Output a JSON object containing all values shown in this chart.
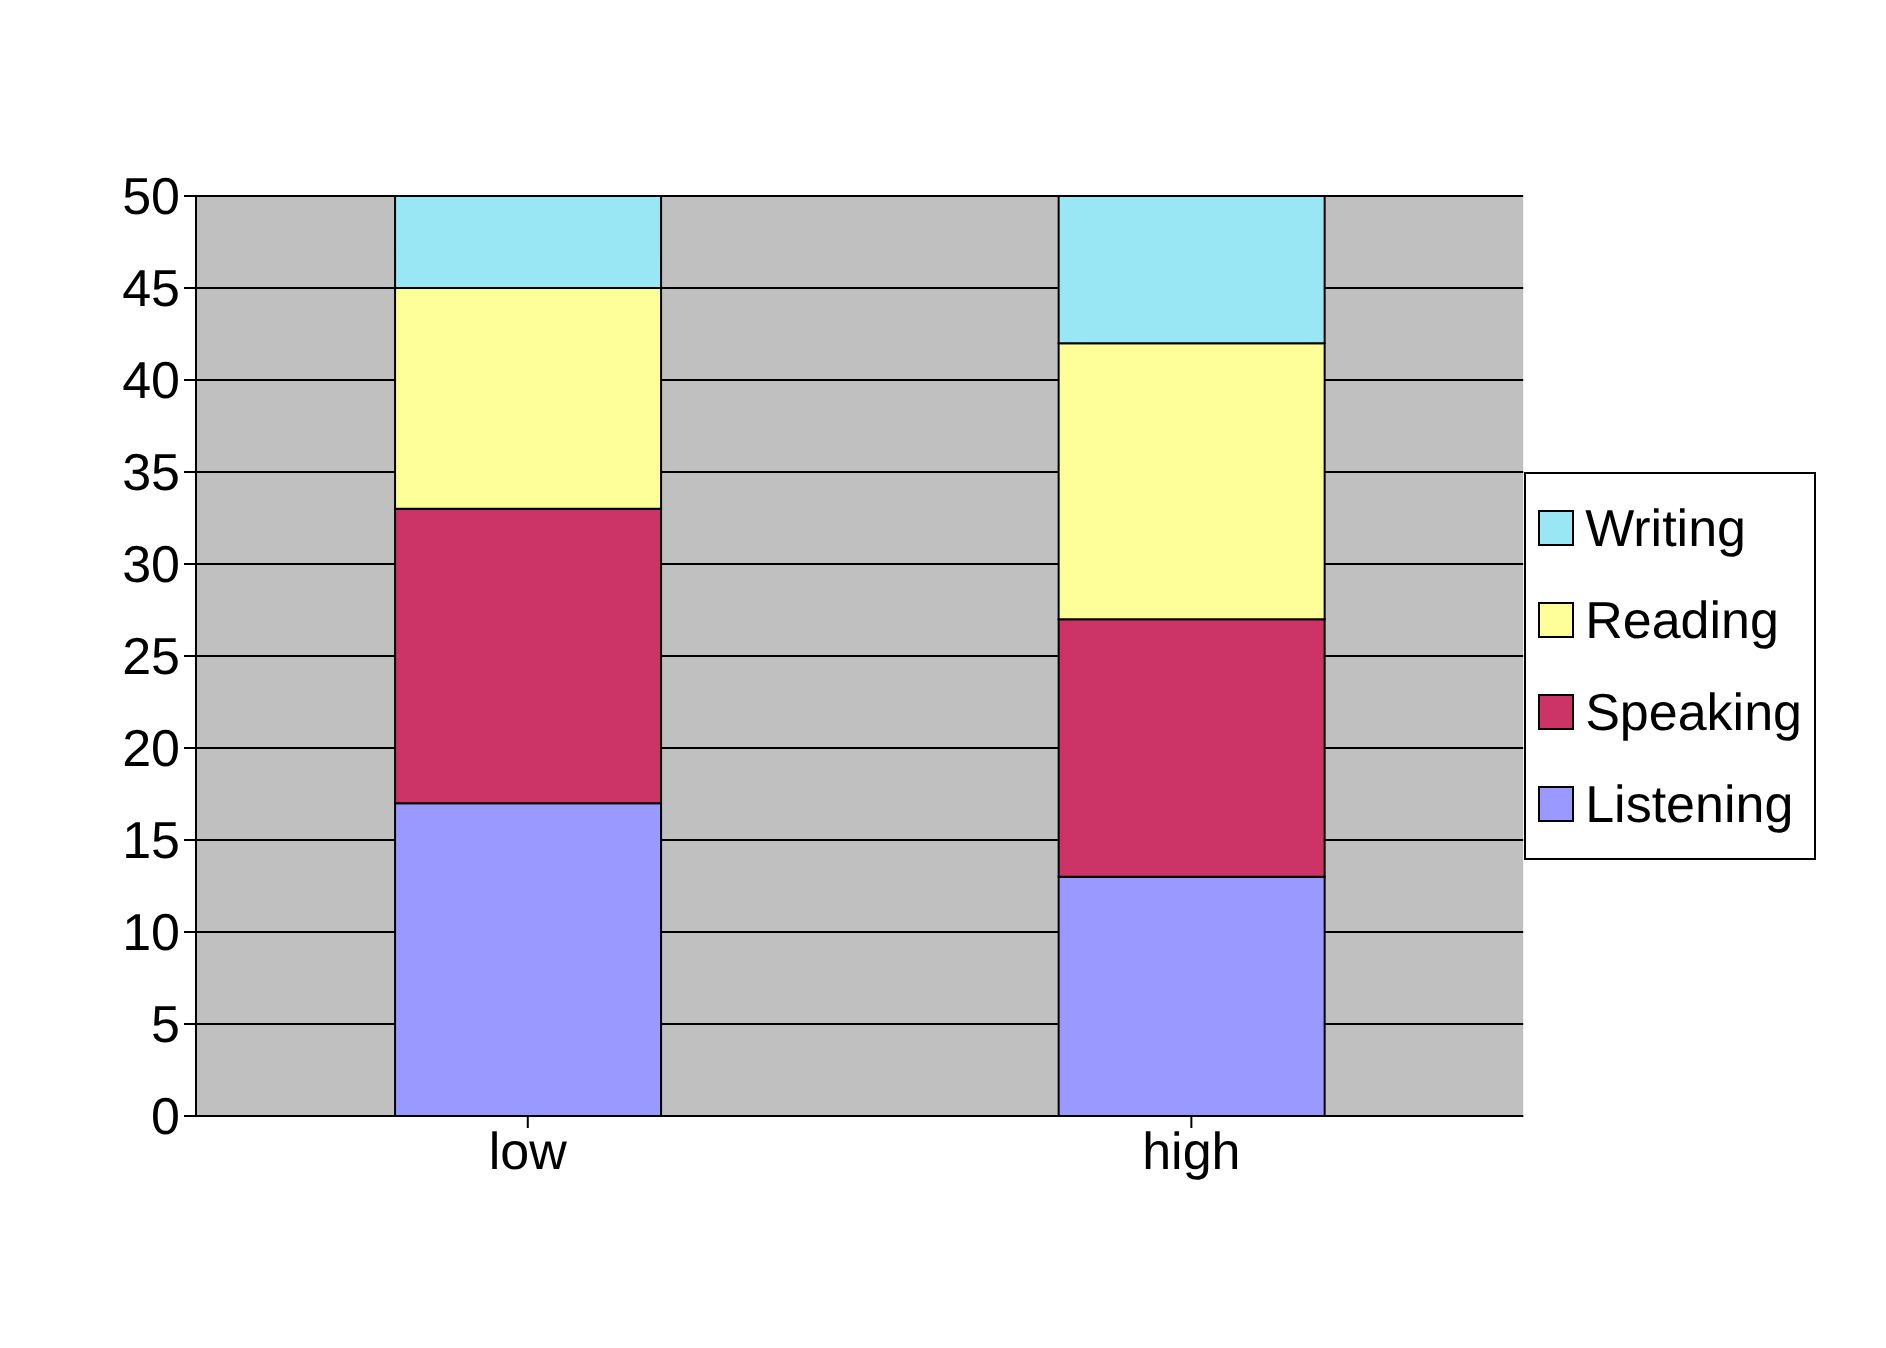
{
  "chart_data": {
    "type": "bar",
    "stacked": true,
    "categories": [
      "low",
      "high"
    ],
    "series": [
      {
        "name": "Listening",
        "color": "#9999ff",
        "values": [
          17,
          13
        ]
      },
      {
        "name": "Speaking",
        "color": "#cc3366",
        "values": [
          16,
          14
        ]
      },
      {
        "name": "Reading",
        "color": "#ffff99",
        "values": [
          12,
          15
        ]
      },
      {
        "name": "Writing",
        "color": "#99e6f5",
        "values": [
          5,
          8
        ]
      }
    ],
    "ylim": [
      0,
      50
    ],
    "yticks": [
      0,
      5,
      10,
      15,
      20,
      25,
      30,
      35,
      40,
      45,
      50
    ],
    "grid": "y",
    "legend": "right"
  }
}
